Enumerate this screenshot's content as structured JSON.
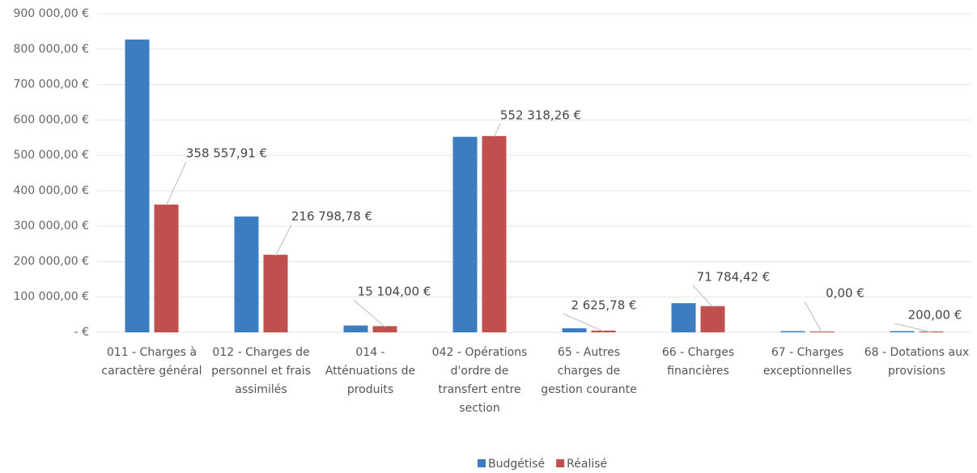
{
  "chart_data": {
    "type": "bar",
    "categories": [
      "011 - Charges à caractère général",
      "012 - Charges de personnel et frais assimilés",
      "014 - Atténuations de produits",
      "042 - Opérations d'ordre de transfert entre section",
      "65 - Autres charges de gestion courante",
      "66 - Charges financières",
      "67 - Charges exceptionnelles",
      "68 - Dotations aux provisions"
    ],
    "series": [
      {
        "name": "Budgétisé",
        "color": "#3b7dc0",
        "values": [
          825000,
          325000,
          17000,
          550000,
          9000,
          80000,
          1000,
          1000
        ]
      },
      {
        "name": "Réalisé",
        "color": "#c0504d",
        "values": [
          358557.91,
          216798.78,
          15104,
          552318.26,
          2625.78,
          71784.42,
          0,
          200
        ],
        "value_labels": [
          "358 557,91 €",
          "216 798,78 €",
          "15 104,00 €",
          "552 318,26 €",
          "2 625,78 €",
          "71 784,42 €",
          "0,00 €",
          "200,00 €"
        ]
      }
    ],
    "ylim": [
      0,
      900000
    ],
    "yticks": [
      {
        "value": 0,
        "label": "-  €"
      },
      {
        "value": 100000,
        "label": "100 000,00 €"
      },
      {
        "value": 200000,
        "label": "200 000,00 €"
      },
      {
        "value": 300000,
        "label": "300 000,00 €"
      },
      {
        "value": 400000,
        "label": "400 000,00 €"
      },
      {
        "value": 500000,
        "label": "500 000,00 €"
      },
      {
        "value": 600000,
        "label": "600 000,00 €"
      },
      {
        "value": 700000,
        "label": "700 000,00 €"
      },
      {
        "value": 800000,
        "label": "800 000,00 €"
      },
      {
        "value": 900000,
        "label": "900 000,00 €"
      }
    ],
    "grid": true,
    "legend": "bottom"
  }
}
